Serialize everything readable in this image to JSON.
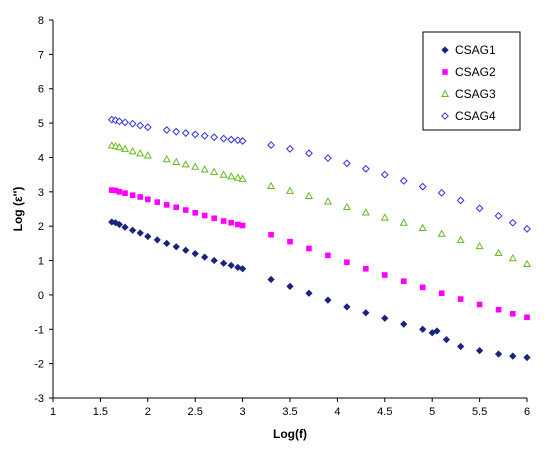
{
  "chart_data": {
    "type": "scatter",
    "title": "",
    "xlabel": "Log(f)",
    "ylabel": "Log (ε'')",
    "xlim": [
      1,
      6
    ],
    "ylim": [
      -3,
      8
    ],
    "xticks": [
      1,
      1.5,
      2,
      2.5,
      3,
      3.5,
      4,
      4.5,
      5,
      5.5,
      6
    ],
    "xtick_labels": [
      "1",
      "1.5",
      "2",
      "2.5",
      "3",
      "3.5",
      "4",
      "4.5",
      "5",
      "5.5",
      "6"
    ],
    "yticks": [
      -3,
      -2,
      -1,
      0,
      1,
      2,
      3,
      4,
      5,
      6,
      7,
      8
    ],
    "ytick_labels": [
      "-3",
      "-2",
      "-1",
      "0",
      "1",
      "2",
      "3",
      "4",
      "5",
      "6",
      "7",
      "8"
    ],
    "grid": false,
    "legend_position": "top-right",
    "series": [
      {
        "name": "CSAG1",
        "marker": "diamond-filled",
        "color": "#1a237e",
        "points": [
          [
            1.62,
            2.12
          ],
          [
            1.66,
            2.1
          ],
          [
            1.7,
            2.05
          ],
          [
            1.76,
            1.97
          ],
          [
            1.84,
            1.88
          ],
          [
            1.92,
            1.8
          ],
          [
            2.0,
            1.7
          ],
          [
            2.1,
            1.6
          ],
          [
            2.2,
            1.5
          ],
          [
            2.3,
            1.4
          ],
          [
            2.4,
            1.3
          ],
          [
            2.5,
            1.2
          ],
          [
            2.6,
            1.1
          ],
          [
            2.7,
            1.0
          ],
          [
            2.8,
            0.92
          ],
          [
            2.88,
            0.86
          ],
          [
            2.95,
            0.8
          ],
          [
            3.0,
            0.76
          ],
          [
            3.3,
            0.45
          ],
          [
            3.5,
            0.25
          ],
          [
            3.7,
            0.05
          ],
          [
            3.9,
            -0.15
          ],
          [
            4.1,
            -0.35
          ],
          [
            4.3,
            -0.52
          ],
          [
            4.5,
            -0.68
          ],
          [
            4.7,
            -0.85
          ],
          [
            4.9,
            -1.0
          ],
          [
            5.0,
            -1.1
          ],
          [
            5.05,
            -1.05
          ],
          [
            5.15,
            -1.3
          ],
          [
            5.3,
            -1.5
          ],
          [
            5.5,
            -1.62
          ],
          [
            5.7,
            -1.72
          ],
          [
            5.85,
            -1.78
          ],
          [
            6.0,
            -1.82
          ]
        ]
      },
      {
        "name": "CSAG2",
        "marker": "square-filled",
        "color": "#ff00ff",
        "points": [
          [
            1.62,
            3.05
          ],
          [
            1.66,
            3.04
          ],
          [
            1.7,
            3.0
          ],
          [
            1.76,
            2.96
          ],
          [
            1.84,
            2.9
          ],
          [
            1.92,
            2.85
          ],
          [
            2.0,
            2.78
          ],
          [
            2.1,
            2.7
          ],
          [
            2.2,
            2.62
          ],
          [
            2.3,
            2.55
          ],
          [
            2.4,
            2.47
          ],
          [
            2.5,
            2.39
          ],
          [
            2.6,
            2.31
          ],
          [
            2.7,
            2.23
          ],
          [
            2.8,
            2.15
          ],
          [
            2.88,
            2.1
          ],
          [
            2.95,
            2.05
          ],
          [
            3.0,
            2.02
          ],
          [
            3.3,
            1.75
          ],
          [
            3.5,
            1.55
          ],
          [
            3.7,
            1.35
          ],
          [
            3.9,
            1.15
          ],
          [
            4.1,
            0.95
          ],
          [
            4.3,
            0.76
          ],
          [
            4.5,
            0.58
          ],
          [
            4.7,
            0.4
          ],
          [
            4.9,
            0.22
          ],
          [
            5.1,
            0.05
          ],
          [
            5.3,
            -0.12
          ],
          [
            5.5,
            -0.28
          ],
          [
            5.7,
            -0.43
          ],
          [
            5.85,
            -0.55
          ],
          [
            6.0,
            -0.65
          ]
        ]
      },
      {
        "name": "CSAG3",
        "marker": "triangle-open",
        "color": "#66bb22",
        "points": [
          [
            1.62,
            4.35
          ],
          [
            1.66,
            4.33
          ],
          [
            1.7,
            4.3
          ],
          [
            1.76,
            4.25
          ],
          [
            1.84,
            4.18
          ],
          [
            1.92,
            4.12
          ],
          [
            2.0,
            4.06
          ],
          [
            2.2,
            3.95
          ],
          [
            2.3,
            3.87
          ],
          [
            2.4,
            3.8
          ],
          [
            2.5,
            3.73
          ],
          [
            2.6,
            3.65
          ],
          [
            2.7,
            3.58
          ],
          [
            2.8,
            3.5
          ],
          [
            2.88,
            3.45
          ],
          [
            2.95,
            3.41
          ],
          [
            3.0,
            3.38
          ],
          [
            3.3,
            3.17
          ],
          [
            3.5,
            3.03
          ],
          [
            3.7,
            2.88
          ],
          [
            3.9,
            2.72
          ],
          [
            4.1,
            2.56
          ],
          [
            4.3,
            2.4
          ],
          [
            4.5,
            2.25
          ],
          [
            4.7,
            2.1
          ],
          [
            4.9,
            1.95
          ],
          [
            5.1,
            1.78
          ],
          [
            5.3,
            1.6
          ],
          [
            5.5,
            1.42
          ],
          [
            5.7,
            1.22
          ],
          [
            5.85,
            1.07
          ],
          [
            6.0,
            0.9
          ]
        ]
      },
      {
        "name": "CSAG4",
        "marker": "diamond-open",
        "color": "#3333dd",
        "points": [
          [
            1.62,
            5.1
          ],
          [
            1.66,
            5.08
          ],
          [
            1.7,
            5.05
          ],
          [
            1.76,
            5.02
          ],
          [
            1.84,
            4.98
          ],
          [
            1.92,
            4.93
          ],
          [
            2.0,
            4.88
          ],
          [
            2.2,
            4.8
          ],
          [
            2.3,
            4.75
          ],
          [
            2.4,
            4.71
          ],
          [
            2.5,
            4.67
          ],
          [
            2.6,
            4.63
          ],
          [
            2.7,
            4.59
          ],
          [
            2.8,
            4.55
          ],
          [
            2.88,
            4.52
          ],
          [
            2.95,
            4.5
          ],
          [
            3.0,
            4.48
          ],
          [
            3.3,
            4.36
          ],
          [
            3.5,
            4.25
          ],
          [
            3.7,
            4.12
          ],
          [
            3.9,
            3.98
          ],
          [
            4.1,
            3.83
          ],
          [
            4.3,
            3.67
          ],
          [
            4.5,
            3.5
          ],
          [
            4.7,
            3.32
          ],
          [
            4.9,
            3.15
          ],
          [
            5.1,
            2.97
          ],
          [
            5.3,
            2.75
          ],
          [
            5.5,
            2.52
          ],
          [
            5.7,
            2.3
          ],
          [
            5.85,
            2.1
          ],
          [
            6.0,
            1.92
          ]
        ]
      }
    ]
  }
}
